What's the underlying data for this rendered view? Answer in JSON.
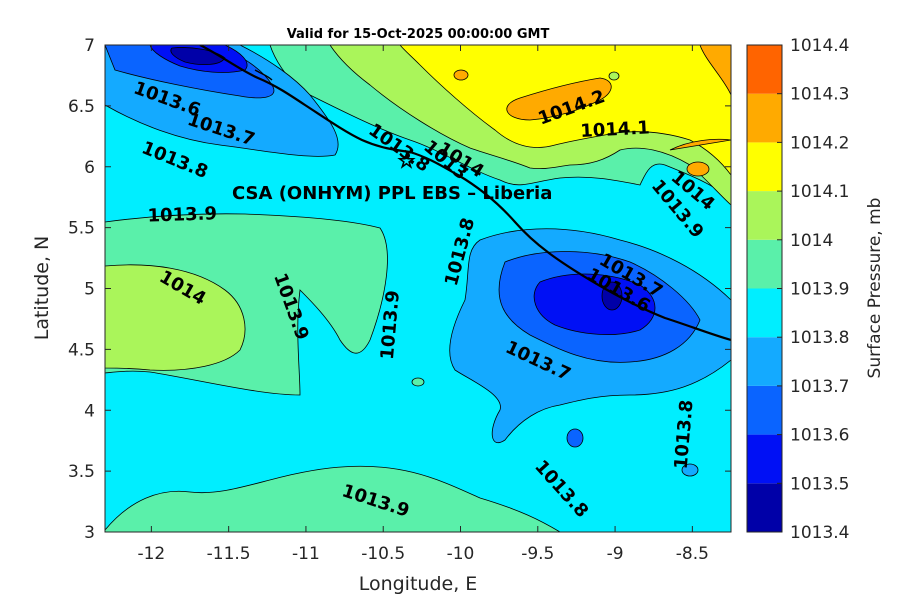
{
  "chart_data": {
    "type": "contour",
    "title": "Valid for 15-Oct-2025 00:00:00 GMT",
    "xlabel": "Longitude, E",
    "ylabel": "Latitude, N",
    "xlim": [
      -12.3,
      -8.25
    ],
    "ylim": [
      3,
      7
    ],
    "x_ticks": [
      "-12",
      "-11.5",
      "-11",
      "-10.5",
      "-10",
      "-9.5",
      "-9",
      "-8.5"
    ],
    "x_tick_values": [
      -12,
      -11.5,
      -11,
      -10.5,
      -10,
      -9.5,
      -9,
      -8.5
    ],
    "y_ticks": [
      "3",
      "3.5",
      "4",
      "4.5",
      "5",
      "5.5",
      "6",
      "6.5",
      "7"
    ],
    "y_tick_values": [
      3,
      3.5,
      4,
      4.5,
      5,
      5.5,
      6,
      6.5,
      7
    ],
    "colorbar": {
      "label": "Surface Pressure, mb",
      "levels": [
        "1013.4",
        "1013.5",
        "1013.6",
        "1013.7",
        "1013.8",
        "1013.9",
        "1014",
        "1014.1",
        "1014.2",
        "1014.3",
        "1014.4"
      ],
      "level_values": [
        1013.4,
        1013.5,
        1013.6,
        1013.7,
        1013.8,
        1013.9,
        1014.0,
        1014.1,
        1014.2,
        1014.3,
        1014.4
      ],
      "colors": [
        "#0000a8",
        "#0010f5",
        "#0a64ff",
        "#14aaff",
        "#00eeff",
        "#5af0aa",
        "#aaf55a",
        "#ffff00",
        "#ffaa00",
        "#ff6400",
        "#ff0000"
      ]
    },
    "annotation": "CSA (ONHYM) PPL EBS  – Liberia",
    "contour_labels": [
      {
        "text": "1013.6",
        "lon": -11.9,
        "lat": 6.55,
        "angle": 20
      },
      {
        "text": "1013.7",
        "lon": -11.55,
        "lat": 6.3,
        "angle": 18
      },
      {
        "text": "1013.8",
        "lon": -11.85,
        "lat": 6.05,
        "angle": 22
      },
      {
        "text": "1013.9",
        "lon": -11.8,
        "lat": 5.6,
        "angle": -2
      },
      {
        "text": "1014",
        "lon": -11.8,
        "lat": 5.0,
        "angle": 30
      },
      {
        "text": "1013.9",
        "lon": -11.1,
        "lat": 4.85,
        "angle": 70
      },
      {
        "text": "1013.9",
        "lon": -10.45,
        "lat": 4.7,
        "angle": -85
      },
      {
        "text": "1013.8",
        "lon": -10.0,
        "lat": 5.3,
        "angle": -75
      },
      {
        "text": "1013.8",
        "lon": -10.4,
        "lat": 6.15,
        "angle": 35
      },
      {
        "text": "1013",
        "lon": -10.1,
        "lat": 6.05,
        "angle": 40
      },
      {
        "text": "1014",
        "lon": -10.0,
        "lat": 6.05,
        "angle": 32
      },
      {
        "text": "1014.2",
        "lon": -9.28,
        "lat": 6.48,
        "angle": -20
      },
      {
        "text": "1014.1",
        "lon": -9.0,
        "lat": 6.3,
        "angle": -3
      },
      {
        "text": "1014",
        "lon": -8.5,
        "lat": 5.8,
        "angle": 40
      },
      {
        "text": "1013.9",
        "lon": -8.6,
        "lat": 5.65,
        "angle": 50
      },
      {
        "text": "1013.7",
        "lon": -8.9,
        "lat": 5.1,
        "angle": 30
      },
      {
        "text": "1013.6",
        "lon": -8.98,
        "lat": 4.98,
        "angle": 30
      },
      {
        "text": "1013.7",
        "lon": -9.5,
        "lat": 4.4,
        "angle": 25
      },
      {
        "text": "1013.8",
        "lon": -8.55,
        "lat": 3.8,
        "angle": -85
      },
      {
        "text": "1013.8",
        "lon": -9.35,
        "lat": 3.35,
        "angle": 48
      },
      {
        "text": "1013.9",
        "lon": -10.55,
        "lat": 3.25,
        "angle": 18
      }
    ],
    "site_marker": {
      "lon": -10.35,
      "lat": 6.05
    }
  }
}
